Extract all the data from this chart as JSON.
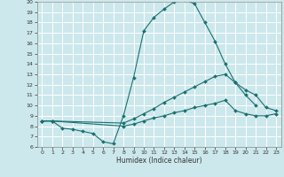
{
  "title": "",
  "xlabel": "Humidex (Indice chaleur)",
  "bg_color": "#cce8ec",
  "grid_color": "#ffffff",
  "line_color": "#1a7070",
  "xlim": [
    -0.5,
    23.5
  ],
  "ylim": [
    6,
    20
  ],
  "xticks": [
    0,
    1,
    2,
    3,
    4,
    5,
    6,
    7,
    8,
    9,
    10,
    11,
    12,
    13,
    14,
    15,
    16,
    17,
    18,
    19,
    20,
    21,
    22,
    23
  ],
  "yticks": [
    6,
    7,
    8,
    9,
    10,
    11,
    12,
    13,
    14,
    15,
    16,
    17,
    18,
    19,
    20
  ],
  "line1_x": [
    0,
    1,
    2,
    3,
    4,
    5,
    6,
    7,
    8,
    9,
    10,
    11,
    12,
    13,
    14,
    15,
    16,
    17,
    18,
    19,
    20,
    21
  ],
  "line1_y": [
    8.5,
    8.5,
    7.8,
    7.7,
    7.5,
    7.3,
    6.5,
    6.3,
    9.0,
    12.7,
    17.2,
    18.5,
    19.3,
    20.0,
    20.2,
    19.8,
    18.0,
    16.2,
    14.0,
    12.2,
    11.0,
    10.0
  ],
  "line2_x": [
    0,
    1,
    8,
    9,
    10,
    11,
    12,
    13,
    14,
    15,
    16,
    17,
    18,
    19,
    20,
    21,
    22,
    23
  ],
  "line2_y": [
    8.5,
    8.5,
    8.3,
    8.7,
    9.2,
    9.7,
    10.3,
    10.8,
    11.3,
    11.8,
    12.3,
    12.8,
    13.0,
    12.2,
    11.5,
    11.0,
    9.8,
    9.5
  ],
  "line3_x": [
    0,
    1,
    8,
    9,
    10,
    11,
    12,
    13,
    14,
    15,
    16,
    17,
    18,
    19,
    20,
    21,
    22,
    23
  ],
  "line3_y": [
    8.5,
    8.5,
    8.0,
    8.2,
    8.5,
    8.8,
    9.0,
    9.3,
    9.5,
    9.8,
    10.0,
    10.2,
    10.5,
    9.5,
    9.2,
    9.0,
    9.0,
    9.2
  ]
}
